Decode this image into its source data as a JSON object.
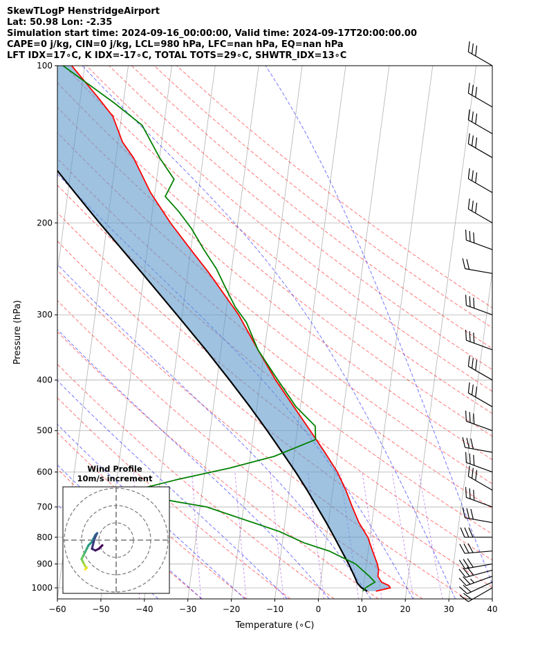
{
  "header": {
    "line1": "SkewTLogP HenstridgeAirport",
    "line2": "Lat: 50.98   Lon: -2.35",
    "line3": "Simulation start time: 2024-09-16_00:00:00, Valid time: 2024-09-17T20:00:00.00",
    "line4": "CAPE=0 j/kg, CIN=0 j/kg, LCL=980 hPa, LFC=nan hPa, EQ=nan hPa",
    "line5": "LFT IDX=17∘C, K IDX=-17∘C, TOTAL TOTS=29∘C, SHWTR_IDX=13∘C"
  },
  "chart_data": {
    "type": "line",
    "title": "SkewTLogP HenstridgeAirport",
    "xlabel": "Temperature (∘C)",
    "ylabel": "Pressure (hPa)",
    "xlim": [
      -60,
      40
    ],
    "ylim": [
      1050,
      100
    ],
    "x_ticks": [
      -60,
      -50,
      -40,
      -30,
      -20,
      -10,
      0,
      10,
      20,
      30,
      40
    ],
    "x_tick_labels": [
      "−60",
      "−50",
      "−40",
      "−30",
      "−20",
      "−10",
      "0",
      "10",
      "20",
      "30",
      "40"
    ],
    "y_ticks": [
      100,
      200,
      300,
      400,
      500,
      600,
      700,
      800,
      900,
      1000
    ],
    "y_tick_labels": [
      "100",
      "200",
      "300",
      "400",
      "500",
      "600",
      "700",
      "800",
      "900",
      "1000"
    ],
    "temperature": {
      "name": "Temperature",
      "color": "#ff0000",
      "pressure": [
        1015,
        1000,
        990,
        975,
        950,
        925,
        900,
        850,
        800,
        750,
        700,
        650,
        600,
        550,
        500,
        450,
        400,
        350,
        300,
        250,
        225,
        200,
        175,
        150,
        140,
        125,
        115,
        100
      ],
      "temp": [
        13,
        16.2,
        15.8,
        14,
        13,
        13,
        12.5,
        11,
        9.5,
        7,
        5,
        3,
        0.5,
        -3,
        -7,
        -11.5,
        -16.5,
        -21.5,
        -27,
        -35,
        -40,
        -45.5,
        -51,
        -56,
        -59,
        -62,
        -66,
        -73
      ]
    },
    "dewpoint": {
      "name": "Dewpoint",
      "color": "#008000",
      "pressure": [
        1015,
        1000,
        975,
        950,
        900,
        850,
        820,
        780,
        700,
        670,
        650,
        620,
        590,
        560,
        520,
        490,
        450,
        400,
        350,
        310,
        290,
        265,
        245,
        225,
        205,
        190,
        178,
        165,
        150,
        130,
        118,
        100
      ],
      "temp": [
        10,
        10.5,
        12.5,
        11,
        7.5,
        1,
        -5,
        -11,
        -28.5,
        -42,
        -45.5,
        -36,
        -24.5,
        -14.5,
        -5.5,
        -6,
        -11,
        -16,
        -21.5,
        -25,
        -28,
        -31,
        -33.5,
        -37,
        -40.5,
        -44,
        -47.5,
        -46,
        -50,
        -55,
        -62,
        -75
      ]
    },
    "parcel": {
      "name": "Parcel profile",
      "color": "#000000",
      "pressure": [
        1015,
        1000,
        980,
        950,
        900,
        850,
        800,
        750,
        700,
        650,
        600,
        550,
        500,
        450,
        400,
        350,
        300,
        250,
        200,
        175,
        150,
        125,
        100
      ],
      "temp": [
        11,
        9.6,
        8.5,
        7.6,
        5.9,
        3.9,
        1.8,
        -0.5,
        -3.1,
        -5.9,
        -9.1,
        -12.8,
        -16.9,
        -21.6,
        -27.1,
        -33.5,
        -41.2,
        -50.4,
        -61.8,
        -68.4,
        -75.9,
        -84.6,
        -94.9
      ]
    },
    "shaded_area": "between temperature and parcel profile",
    "dry_adiabats_theta_K": [
      243,
      253,
      263,
      273,
      283,
      293,
      303,
      313,
      323,
      333,
      343,
      353,
      363,
      373,
      383,
      393,
      403,
      413,
      423,
      433
    ],
    "moist_adiabats_start_C": [
      -40,
      -30,
      -20,
      -10,
      0,
      10,
      20,
      30,
      40
    ],
    "mixing_ratio_lines_gkg": [
      0.1,
      0.4,
      1,
      2,
      4,
      7,
      10,
      16,
      24
    ],
    "isotherm_spacing_C": 10,
    "wind_barbs": {
      "pressure": [
        1000,
        975,
        950,
        925,
        900,
        850,
        800,
        750,
        700,
        650,
        600,
        550,
        500,
        450,
        400,
        350,
        300,
        250,
        225,
        200,
        175,
        150,
        135,
        120,
        100
      ],
      "speed_kt": [
        20,
        20,
        25,
        30,
        30,
        30,
        30,
        30,
        30,
        30,
        30,
        30,
        30,
        30,
        30,
        30,
        30,
        20,
        30,
        30,
        30,
        30,
        30,
        30,
        30
      ],
      "direction_deg": [
        240,
        245,
        250,
        255,
        260,
        265,
        270,
        280,
        290,
        300,
        290,
        280,
        290,
        300,
        300,
        290,
        290,
        280,
        290,
        300,
        300,
        300,
        300,
        300,
        300
      ]
    },
    "inset": {
      "title_line1": "Wind Profile",
      "title_line2": "10m/s increment",
      "rings_ms": [
        10,
        20,
        30
      ],
      "hodograph_u_ms": [
        -18,
        -17,
        -18,
        -19,
        -20,
        -19,
        -18,
        -17,
        -16,
        -14,
        -13,
        -12,
        -11,
        -12,
        -13,
        -14,
        -12,
        -10,
        -8
      ],
      "hodograph_v_ms": [
        -17,
        -16,
        -15,
        -13,
        -11,
        -9,
        -7,
        -5,
        -3,
        -1,
        1,
        3,
        4,
        2,
        -1,
        -5,
        -6,
        -5,
        -3
      ]
    }
  }
}
